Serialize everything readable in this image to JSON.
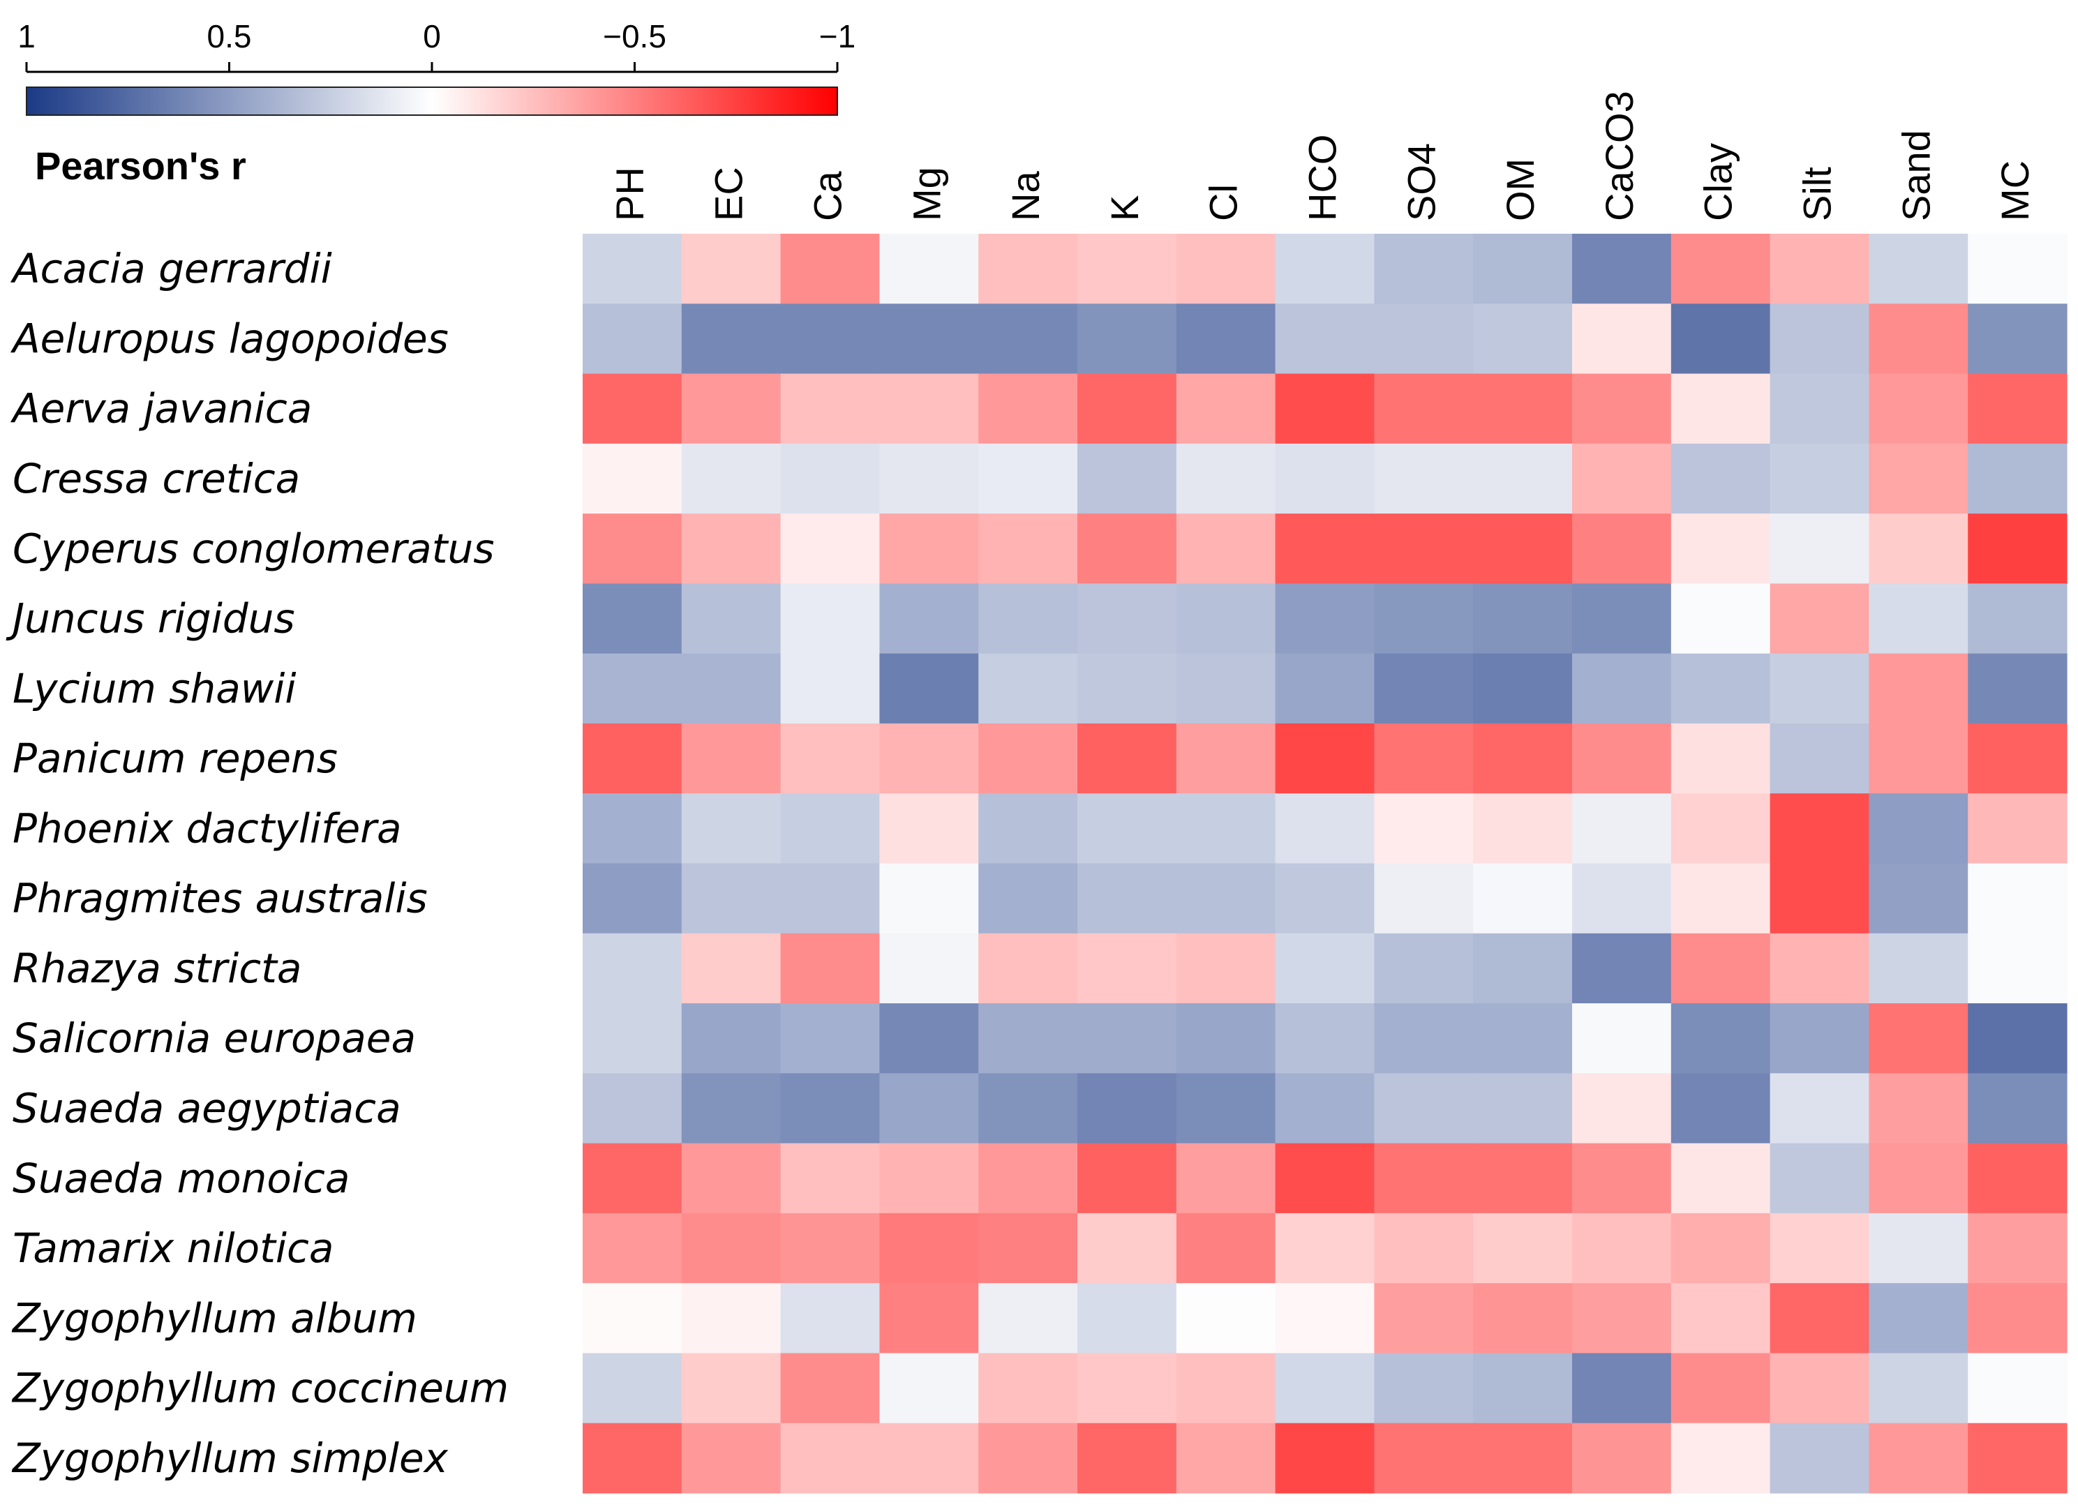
{
  "chart_data": {
    "type": "heatmap",
    "title": "",
    "xlabel": "",
    "ylabel": "",
    "colorbar": {
      "label": "Pearson's r",
      "ticks": [
        "1",
        "0.5",
        "0",
        "−0.5",
        "−1"
      ],
      "range": [
        1,
        -1
      ],
      "colors": {
        "high": "#1b3a86",
        "mid": "#ffffff",
        "low": "#ff0000"
      }
    },
    "columns": [
      "PH",
      "EC",
      "Ca",
      "Mg",
      "Na",
      "K",
      "Cl",
      "HCO",
      "SO4",
      "OM",
      "CaCO3",
      "Clay",
      "Silt",
      "Sand",
      "MC"
    ],
    "rows": [
      "Acacia gerrardii",
      "Aeluropus lagopoides",
      "Aerva javanica",
      "Cressa cretica",
      "Cyperus conglomeratus",
      "Juncus rigidus",
      "Lycium shawii",
      "Panicum repens",
      "Phoenix dactylifera",
      "Phragmites australis",
      "Rhazya stricta",
      "Salicornia europaea",
      "Suaeda aegyptiaca",
      "Suaeda monoica",
      "Tamarix nilotica",
      "Zygophyllum album",
      "Zygophyllum coccineum",
      "Zygophyllum simplex"
    ],
    "values": [
      [
        0.22,
        -0.2,
        -0.45,
        0.05,
        -0.25,
        -0.22,
        -0.25,
        0.2,
        0.32,
        0.35,
        0.62,
        -0.45,
        -0.3,
        0.22,
        0.02
      ],
      [
        0.32,
        0.6,
        0.6,
        0.6,
        0.6,
        0.55,
        0.62,
        0.3,
        0.3,
        0.28,
        -0.1,
        0.7,
        0.3,
        -0.45,
        0.55
      ],
      [
        -0.6,
        -0.4,
        -0.25,
        -0.25,
        -0.4,
        -0.6,
        -0.35,
        -0.7,
        -0.55,
        -0.55,
        -0.45,
        -0.1,
        0.28,
        -0.4,
        -0.6
      ],
      [
        -0.05,
        0.12,
        0.15,
        0.12,
        0.1,
        0.3,
        0.12,
        0.15,
        0.12,
        0.12,
        -0.3,
        0.3,
        0.25,
        -0.35,
        0.35
      ],
      [
        -0.45,
        -0.3,
        -0.08,
        -0.35,
        -0.3,
        -0.5,
        -0.3,
        -0.65,
        -0.65,
        -0.65,
        -0.5,
        -0.1,
        0.08,
        -0.2,
        -0.75
      ],
      [
        0.58,
        0.32,
        0.1,
        0.4,
        0.32,
        0.3,
        0.32,
        0.5,
        0.52,
        0.55,
        0.58,
        0.02,
        -0.35,
        0.18,
        0.35
      ],
      [
        0.38,
        0.38,
        0.1,
        0.65,
        0.25,
        0.28,
        0.3,
        0.45,
        0.62,
        0.65,
        0.4,
        0.32,
        0.25,
        -0.4,
        0.6
      ],
      [
        -0.62,
        -0.4,
        -0.25,
        -0.3,
        -0.4,
        -0.62,
        -0.38,
        -0.72,
        -0.55,
        -0.6,
        -0.45,
        -0.12,
        0.3,
        -0.4,
        -0.62
      ],
      [
        0.4,
        0.22,
        0.25,
        -0.12,
        0.32,
        0.25,
        0.25,
        0.15,
        -0.08,
        -0.12,
        0.08,
        -0.18,
        -0.7,
        0.5,
        -0.28
      ],
      [
        0.5,
        0.3,
        0.3,
        0.03,
        0.4,
        0.32,
        0.32,
        0.28,
        0.08,
        0.04,
        0.15,
        -0.1,
        -0.7,
        0.48,
        0.02
      ],
      [
        0.22,
        -0.2,
        -0.45,
        0.05,
        -0.25,
        -0.22,
        -0.25,
        0.2,
        0.32,
        0.35,
        0.62,
        -0.45,
        -0.3,
        0.22,
        0.02
      ],
      [
        0.22,
        0.45,
        0.4,
        0.6,
        0.42,
        0.42,
        0.45,
        0.32,
        0.4,
        0.4,
        0.03,
        0.58,
        0.45,
        -0.55,
        0.72
      ],
      [
        0.3,
        0.55,
        0.58,
        0.45,
        0.55,
        0.62,
        0.58,
        0.4,
        0.3,
        0.3,
        -0.1,
        0.62,
        0.15,
        -0.38,
        0.58
      ],
      [
        -0.6,
        -0.4,
        -0.25,
        -0.3,
        -0.4,
        -0.62,
        -0.38,
        -0.7,
        -0.55,
        -0.55,
        -0.45,
        -0.1,
        0.28,
        -0.4,
        -0.62
      ],
      [
        -0.4,
        -0.45,
        -0.42,
        -0.52,
        -0.5,
        -0.2,
        -0.5,
        -0.18,
        -0.25,
        -0.2,
        -0.25,
        -0.32,
        -0.18,
        0.12,
        -0.38
      ],
      [
        -0.02,
        -0.05,
        0.15,
        -0.5,
        0.08,
        0.18,
        0.01,
        -0.03,
        -0.38,
        -0.42,
        -0.38,
        -0.22,
        -0.6,
        0.4,
        -0.45
      ],
      [
        0.22,
        -0.2,
        -0.45,
        0.05,
        -0.25,
        -0.22,
        -0.25,
        0.2,
        0.32,
        0.35,
        0.62,
        -0.45,
        -0.3,
        0.22,
        0.02
      ],
      [
        -0.6,
        -0.4,
        -0.25,
        -0.25,
        -0.4,
        -0.6,
        -0.35,
        -0.72,
        -0.55,
        -0.55,
        -0.42,
        -0.08,
        0.3,
        -0.4,
        -0.6
      ]
    ]
  }
}
